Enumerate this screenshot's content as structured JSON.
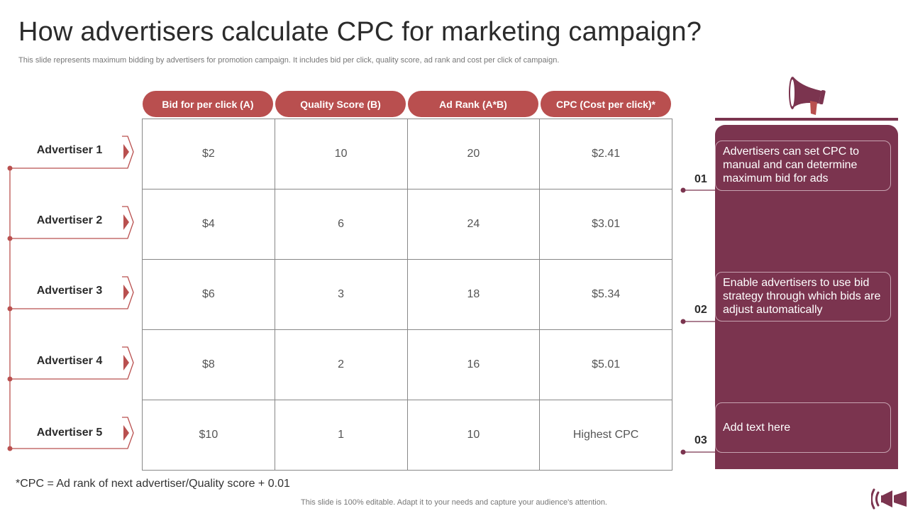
{
  "title": "How advertisers calculate CPC for marketing campaign?",
  "subtitle": "This slide represents maximum bidding by advertisers for promotion campaign. It includes bid per click, quality score, ad rank and cost per click of campaign.",
  "colors": {
    "header_pill": "#b94f4f",
    "panel": "#7b344f",
    "connector": "#b9504f"
  },
  "columns": [
    "Bid for per click (A)",
    "Quality Score (B)",
    "Ad Rank (A*B)",
    "CPC (Cost per click)*"
  ],
  "advertisers": [
    {
      "name": "Advertiser 1",
      "bid": "$2",
      "quality": "10",
      "rank": "20",
      "cpc": "$2.41"
    },
    {
      "name": "Advertiser 2",
      "bid": "$4",
      "quality": "6",
      "rank": "24",
      "cpc": "$3.01"
    },
    {
      "name": "Advertiser 3",
      "bid": "$6",
      "quality": "3",
      "rank": "18",
      "cpc": "$5.34"
    },
    {
      "name": "Advertiser 4",
      "bid": "$8",
      "quality": "2",
      "rank": "16",
      "cpc": "$5.01"
    },
    {
      "name": "Advertiser 5",
      "bid": "$10",
      "quality": "1",
      "rank": "10",
      "cpc": "Highest CPC"
    }
  ],
  "points": [
    {
      "number": "01",
      "text": "Advertisers can set CPC to manual and can determine maximum bid for ads"
    },
    {
      "number": "02",
      "text": "Enable advertisers to use bid strategy through which bids are adjust automatically"
    },
    {
      "number": "03",
      "text": "Add text here"
    }
  ],
  "icons": [
    "megaphone-icon",
    "megaphone-logo-icon"
  ],
  "footnote": "*CPC = Ad rank of next advertiser/Quality  score + 0.01",
  "footer": "This slide is 100% editable. Adapt it to your needs and capture your audience's attention."
}
